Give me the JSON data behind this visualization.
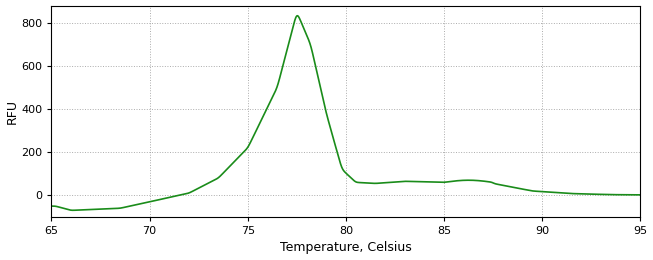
{
  "title": "",
  "xlabel": "Temperature, Celsius",
  "ylabel": "R\nF\nU",
  "xlim": [
    65,
    95
  ],
  "ylim": [
    -100,
    880
  ],
  "xticks": [
    65,
    70,
    75,
    80,
    85,
    90,
    95
  ],
  "yticks": [
    0,
    200,
    400,
    600,
    800
  ],
  "line_color": "#1a8c1a",
  "background_color": "#ffffff",
  "grid_color": "#888888",
  "figsize": [
    6.53,
    2.6
  ],
  "dpi": 100,
  "label_color": "#000000",
  "tick_color": "#000000",
  "spine_color": "#000000"
}
